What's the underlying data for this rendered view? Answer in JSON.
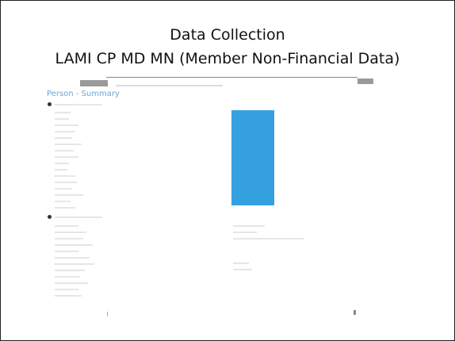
{
  "header": {
    "title": "Data Collection",
    "subtitle": "LAMI CP MD MN (Member Non-Financial Data)"
  },
  "screen": {
    "heading": "Person - Summary"
  }
}
